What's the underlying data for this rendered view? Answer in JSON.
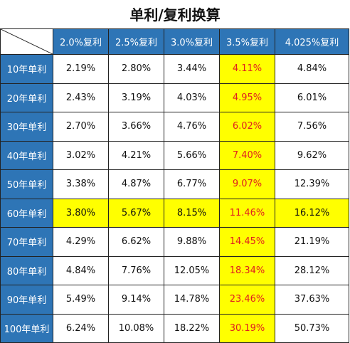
{
  "title": "单利/复利换算",
  "columns": [
    "2.0%复利",
    "2.5%复利",
    "3.0%复利",
    "3.5%复利",
    "4.025%复利"
  ],
  "rows": [
    {
      "label": "10年单利",
      "values": [
        "2.19%",
        "2.80%",
        "3.44%",
        "4.11%",
        "4.84%"
      ]
    },
    {
      "label": "20年单利",
      "values": [
        "2.43%",
        "3.19%",
        "4.03%",
        "4.95%",
        "6.01%"
      ]
    },
    {
      "label": "30年单利",
      "values": [
        "2.70%",
        "3.66%",
        "4.76%",
        "6.02%",
        "7.56%"
      ]
    },
    {
      "label": "40年单利",
      "values": [
        "3.02%",
        "4.21%",
        "5.66%",
        "7.40%",
        "9.62%"
      ]
    },
    {
      "label": "50年单利",
      "values": [
        "3.38%",
        "4.87%",
        "6.77%",
        "9.07%",
        "12.39%"
      ]
    },
    {
      "label": "60年单利",
      "values": [
        "3.80%",
        "5.67%",
        "8.15%",
        "11.46%",
        "16.12%"
      ]
    },
    {
      "label": "70年单利",
      "values": [
        "4.29%",
        "6.62%",
        "9.88%",
        "14.45%",
        "21.19%"
      ]
    },
    {
      "label": "80年单利",
      "values": [
        "4.84%",
        "7.76%",
        "12.05%",
        "18.34%",
        "28.12%"
      ]
    },
    {
      "label": "90年单利",
      "values": [
        "5.49%",
        "9.14%",
        "14.78%",
        "23.46%",
        "37.63%"
      ]
    },
    {
      "label": "100年单利",
      "values": [
        "6.24%",
        "10.08%",
        "18.22%",
        "30.19%",
        "50.73%"
      ]
    }
  ],
  "highlight": {
    "column_index": 3,
    "row_index": 5
  },
  "colors": {
    "header_bg": "#2e75b6",
    "header_text": "#ffffff",
    "highlight_bg": "#ffff00",
    "highlight_column_text": "#e02020",
    "border": "#222222"
  }
}
